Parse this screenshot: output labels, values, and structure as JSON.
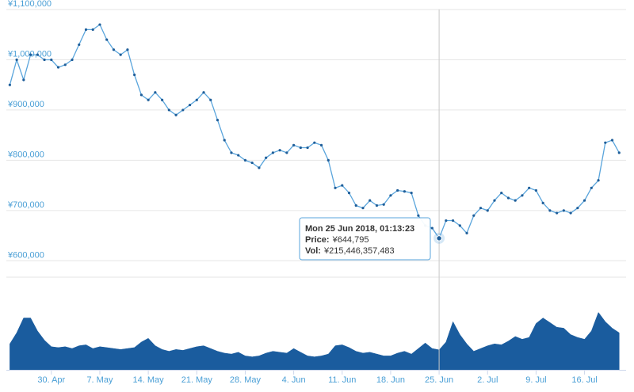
{
  "chart_data": [
    {
      "type": "line",
      "x": [
        "2018-04-24",
        "2018-04-25",
        "2018-04-26",
        "2018-04-27",
        "2018-04-28",
        "2018-04-29",
        "2018-04-30",
        "2018-05-01",
        "2018-05-02",
        "2018-05-03",
        "2018-05-04",
        "2018-05-05",
        "2018-05-06",
        "2018-05-07",
        "2018-05-08",
        "2018-05-09",
        "2018-05-10",
        "2018-05-11",
        "2018-05-12",
        "2018-05-13",
        "2018-05-14",
        "2018-05-15",
        "2018-05-16",
        "2018-05-17",
        "2018-05-18",
        "2018-05-19",
        "2018-05-20",
        "2018-05-21",
        "2018-05-22",
        "2018-05-23",
        "2018-05-24",
        "2018-05-25",
        "2018-05-26",
        "2018-05-27",
        "2018-05-28",
        "2018-05-29",
        "2018-05-30",
        "2018-05-31",
        "2018-06-01",
        "2018-06-02",
        "2018-06-03",
        "2018-06-04",
        "2018-06-05",
        "2018-06-06",
        "2018-06-07",
        "2018-06-08",
        "2018-06-09",
        "2018-06-10",
        "2018-06-11",
        "2018-06-12",
        "2018-06-13",
        "2018-06-14",
        "2018-06-15",
        "2018-06-16",
        "2018-06-17",
        "2018-06-18",
        "2018-06-19",
        "2018-06-20",
        "2018-06-21",
        "2018-06-22",
        "2018-06-23",
        "2018-06-24",
        "2018-06-25",
        "2018-06-26",
        "2018-06-27",
        "2018-06-28",
        "2018-06-29",
        "2018-06-30",
        "2018-07-01",
        "2018-07-02",
        "2018-07-03",
        "2018-07-04",
        "2018-07-05",
        "2018-07-06",
        "2018-07-07",
        "2018-07-08",
        "2018-07-09",
        "2018-07-10",
        "2018-07-11",
        "2018-07-12",
        "2018-07-13",
        "2018-07-14",
        "2018-07-15",
        "2018-07-16",
        "2018-07-17",
        "2018-07-18",
        "2018-07-19",
        "2018-07-20",
        "2018-07-21"
      ],
      "series": [
        {
          "name": "Price",
          "color": "#1f5e99",
          "line_color": "#5aa5dc",
          "values": [
            950000,
            1000000,
            960000,
            1010000,
            1010000,
            1000000,
            1000000,
            985000,
            990000,
            1000000,
            1030000,
            1060000,
            1060000,
            1070000,
            1040000,
            1020000,
            1010000,
            1020000,
            970000,
            930000,
            920000,
            935000,
            920000,
            900000,
            890000,
            900000,
            910000,
            920000,
            935000,
            920000,
            880000,
            840000,
            815000,
            810000,
            800000,
            795000,
            785000,
            805000,
            815000,
            820000,
            815000,
            830000,
            825000,
            825000,
            835000,
            830000,
            800000,
            745000,
            750000,
            735000,
            710000,
            705000,
            720000,
            710000,
            712000,
            730000,
            740000,
            738000,
            735000,
            690000,
            670000,
            665000,
            644795,
            680000,
            680000,
            670000,
            655000,
            690000,
            705000,
            700000,
            720000,
            735000,
            725000,
            720000,
            730000,
            745000,
            740000,
            715000,
            700000,
            695000,
            700000,
            695000,
            705000,
            720000,
            745000,
            760000,
            835000,
            840000,
            815000
          ]
        }
      ],
      "xlim": [
        "2018-04-23T12:00:00Z",
        "2018-07-22T00:00:00Z"
      ],
      "ylim": [
        580000,
        1100000
      ],
      "yticks": [
        {
          "value": 600000,
          "label": "¥600,000"
        },
        {
          "value": 700000,
          "label": "¥700,000"
        },
        {
          "value": 800000,
          "label": "¥800,000"
        },
        {
          "value": 900000,
          "label": "¥900,000"
        },
        {
          "value": 1000000,
          "label": "¥1,000,000"
        },
        {
          "value": 1100000,
          "label": "¥1,100,000"
        }
      ],
      "grid": true,
      "tooltip": {
        "index": 62,
        "date": "Mon 25 Jun 2018, 01:13:23",
        "price_label": "Price:",
        "price": "¥644,795",
        "vol_label": "Vol:",
        "vol": "¥215,446,357,483"
      }
    },
    {
      "type": "area",
      "series": [
        {
          "name": "Vol",
          "color": "#1a5c9e",
          "values": [
            280000000000,
            400000000000,
            560000000000,
            560000000000,
            420000000000,
            320000000000,
            250000000000,
            240000000000,
            250000000000,
            230000000000,
            260000000000,
            270000000000,
            230000000000,
            250000000000,
            240000000000,
            230000000000,
            220000000000,
            230000000000,
            240000000000,
            300000000000,
            340000000000,
            260000000000,
            220000000000,
            200000000000,
            220000000000,
            210000000000,
            230000000000,
            250000000000,
            260000000000,
            230000000000,
            200000000000,
            180000000000,
            170000000000,
            190000000000,
            150000000000,
            140000000000,
            150000000000,
            180000000000,
            200000000000,
            190000000000,
            180000000000,
            230000000000,
            190000000000,
            150000000000,
            140000000000,
            150000000000,
            170000000000,
            260000000000,
            270000000000,
            240000000000,
            200000000000,
            180000000000,
            190000000000,
            170000000000,
            150000000000,
            150000000000,
            180000000000,
            200000000000,
            170000000000,
            230000000000,
            290000000000,
            230000000000,
            215446357483,
            300000000000,
            520000000000,
            380000000000,
            280000000000,
            200000000000,
            230000000000,
            260000000000,
            280000000000,
            270000000000,
            310000000000,
            360000000000,
            330000000000,
            350000000000,
            500000000000,
            560000000000,
            510000000000,
            460000000000,
            450000000000,
            380000000000,
            350000000000,
            330000000000,
            420000000000,
            620000000000,
            520000000000,
            450000000000,
            400000000000
          ]
        }
      ],
      "ylim": [
        0,
        1000000000000
      ],
      "xticks": [
        {
          "value": "2018-04-30",
          "label": "30. Apr"
        },
        {
          "value": "2018-05-07",
          "label": "7. May"
        },
        {
          "value": "2018-05-14",
          "label": "14. May"
        },
        {
          "value": "2018-05-21",
          "label": "21. May"
        },
        {
          "value": "2018-05-28",
          "label": "28. May"
        },
        {
          "value": "2018-06-04",
          "label": "4. Jun"
        },
        {
          "value": "2018-06-11",
          "label": "11. Jun"
        },
        {
          "value": "2018-06-18",
          "label": "18. Jun"
        },
        {
          "value": "2018-06-25",
          "label": "25. Jun"
        },
        {
          "value": "2018-07-02",
          "label": "2. Jul"
        },
        {
          "value": "2018-07-09",
          "label": "9. Jul"
        },
        {
          "value": "2018-07-16",
          "label": "16. Jul"
        }
      ]
    }
  ]
}
